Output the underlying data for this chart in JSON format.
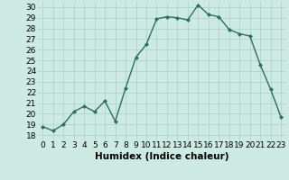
{
  "x": [
    0,
    1,
    2,
    3,
    4,
    5,
    6,
    7,
    8,
    9,
    10,
    11,
    12,
    13,
    14,
    15,
    16,
    17,
    18,
    19,
    20,
    21,
    22,
    23
  ],
  "y": [
    18.8,
    18.4,
    19.0,
    20.2,
    20.7,
    20.2,
    21.2,
    19.3,
    22.4,
    25.3,
    26.5,
    28.9,
    29.1,
    29.0,
    28.8,
    30.2,
    29.3,
    29.1,
    27.9,
    27.5,
    27.3,
    24.6,
    22.3,
    19.7
  ],
  "line_color": "#2d6e5e",
  "marker": "D",
  "marker_size": 2.0,
  "bg_color": "#cce9e2",
  "grid_color": "#b0d4cc",
  "xlabel": "Humidex (Indice chaleur)",
  "xlim": [
    -0.5,
    23.5
  ],
  "ylim": [
    17.5,
    30.5
  ],
  "yticks": [
    18,
    19,
    20,
    21,
    22,
    23,
    24,
    25,
    26,
    27,
    28,
    29,
    30
  ],
  "xticks": [
    0,
    1,
    2,
    3,
    4,
    5,
    6,
    7,
    8,
    9,
    10,
    11,
    12,
    13,
    14,
    15,
    16,
    17,
    18,
    19,
    20,
    21,
    22,
    23
  ],
  "xlabel_fontsize": 7.5,
  "tick_fontsize": 6.5,
  "linewidth": 1.0
}
